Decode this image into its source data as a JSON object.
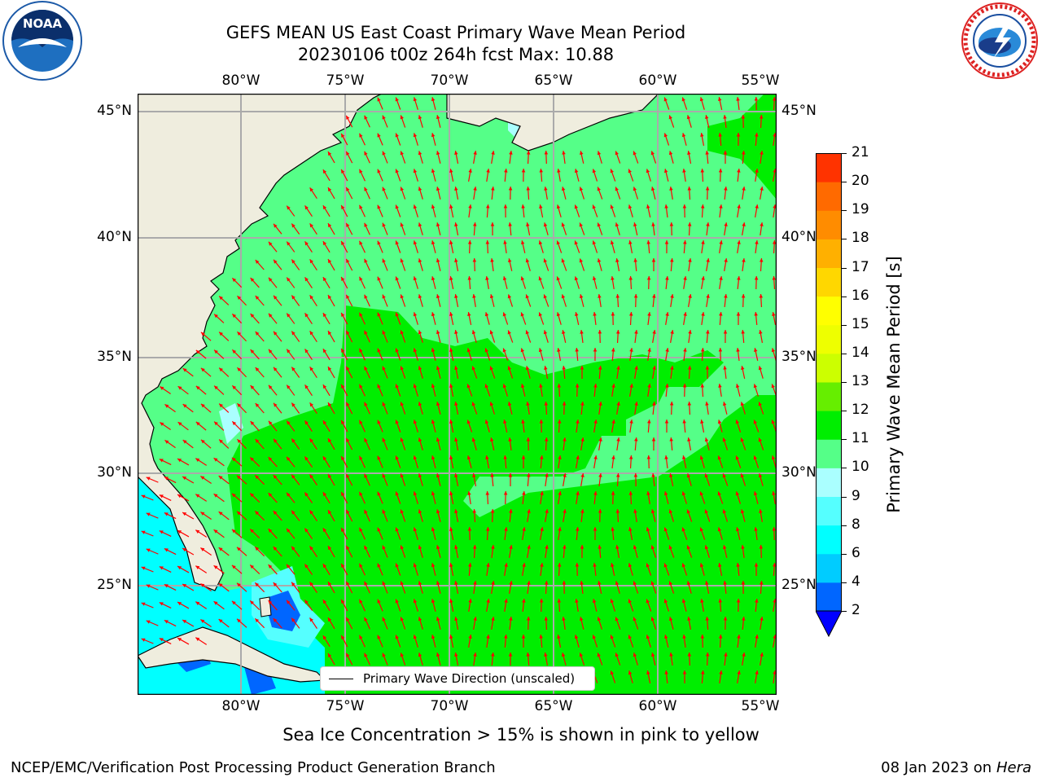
{
  "title": {
    "line1": "GEFS MEAN US East Coast Primary Wave Mean Period",
    "line2": "20230106 t00z 264h fcst   Max: 10.88"
  },
  "map": {
    "lon_labels": [
      "80°W",
      "75°W",
      "70°W",
      "65°W",
      "60°W",
      "55°W"
    ],
    "lat_labels": [
      "45°N",
      "40°N",
      "35°N",
      "30°N",
      "25°N"
    ],
    "legend_label": "Primary Wave Direction (unscaled)",
    "arrow_color": "#ff0000",
    "land_color": "#efedde"
  },
  "colorbar": {
    "label": "Primary Wave Mean Period [s]",
    "ticks": [
      "2",
      "4",
      "6",
      "8",
      "9",
      "10",
      "11",
      "12",
      "13",
      "14",
      "15",
      "16",
      "17",
      "18",
      "19",
      "20",
      "21"
    ],
    "colors": [
      "#0066ff",
      "#00ccff",
      "#00ffff",
      "#55ffff",
      "#aaffff",
      "#55ff88",
      "#00ee00",
      "#66ee00",
      "#ccff00",
      "#eeff00",
      "#ffff00",
      "#ffd700",
      "#ffb000",
      "#ff8c00",
      "#ff6a00",
      "#ff3300",
      "#ff0000"
    ],
    "under_color": "#0000ff"
  },
  "note": "Sea Ice Concentration > 15% is shown in pink to yellow",
  "footer": {
    "left": "NCEP/EMC/Verification Post Processing Product Generation Branch",
    "date": "08 Jan 2023 on",
    "host": "Hera"
  },
  "logos": {
    "noaa": "NOAA",
    "nws": "NATIONAL WEATHER SERVICE"
  }
}
